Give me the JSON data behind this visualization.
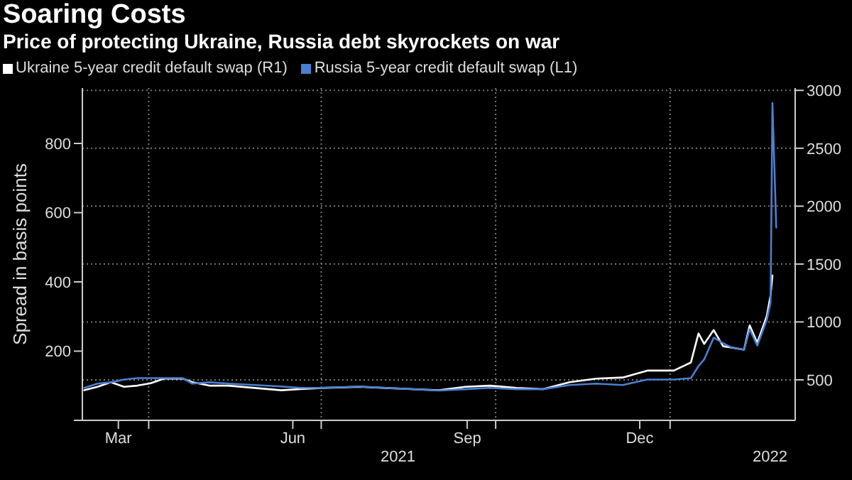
{
  "chart_data": {
    "type": "line",
    "title": "Soaring Costs",
    "subtitle": "Price of protecting Ukraine, Russia debt skyrockets on war",
    "ylabel": "Spread in basis points",
    "x": [
      "2021-02-26",
      "2021-03-05",
      "2021-03-12",
      "2021-03-19",
      "2021-03-26",
      "2021-04-02",
      "2021-04-09",
      "2021-04-19",
      "2021-04-24",
      "2021-05-03",
      "2021-05-13",
      "2021-05-27",
      "2021-06-10",
      "2021-06-20",
      "2021-07-01",
      "2021-07-21",
      "2021-08-04",
      "2021-08-18",
      "2021-09-01",
      "2021-09-15",
      "2021-09-28",
      "2021-10-12",
      "2021-10-26",
      "2021-11-09",
      "2021-11-23",
      "2021-12-07",
      "2021-12-20",
      "2022-01-03",
      "2022-01-12",
      "2022-01-16",
      "2022-01-19",
      "2022-01-24",
      "2022-01-29",
      "2022-02-02",
      "2022-02-09",
      "2022-02-12",
      "2022-02-16",
      "2022-02-21",
      "2022-02-23",
      "2022-02-24",
      "2022-02-26"
    ],
    "series": [
      {
        "name": "Ukraine 5-year credit default swap (R1)",
        "color": "#ffffff",
        "axis": "y2",
        "values": [
          410,
          440,
          480,
          440,
          450,
          470,
          510,
          510,
          480,
          450,
          450,
          430,
          410,
          420,
          430,
          440,
          430,
          420,
          410,
          440,
          450,
          430,
          420,
          480,
          510,
          520,
          580,
          580,
          650,
          900,
          810,
          930,
          790,
          780,
          760,
          970,
          820,
          1050,
          1230,
          1400,
          null
        ]
      },
      {
        "name": "Russia 5-year credit default swap (L1)",
        "color": "#4a7fd0",
        "values": [
          94,
          106,
          110,
          118,
          122,
          122,
          122,
          122,
          106,
          110,
          106,
          102,
          98,
          94,
          94,
          98,
          94,
          90,
          86,
          90,
          94,
          90,
          90,
          102,
          106,
          102,
          118,
          118,
          122,
          157,
          176,
          239,
          223,
          212,
          204,
          263,
          216,
          290,
          341,
          917,
          557
        ]
      }
    ],
    "xlim": [
      "2021-02-25",
      "2022-03-08"
    ],
    "xticks": [
      {
        "value": "2021-03-16",
        "label": "Mar"
      },
      {
        "value": "2021-04-01",
        "label": null
      },
      {
        "value": "2021-06-16",
        "label": "Jun"
      },
      {
        "value": "2021-07-01",
        "label": null
      },
      {
        "value": "2021-09-16",
        "label": "Sep"
      },
      {
        "value": "2021-10-01",
        "label": null
      },
      {
        "value": "2021-12-16",
        "label": "Dec"
      },
      {
        "value": "2022-01-01",
        "label": null
      }
    ],
    "ylim": [
      0,
      960
    ],
    "yticks": [
      {
        "value": 0,
        "label": null
      },
      200,
      400,
      600,
      800
    ],
    "y2lim": [
      150,
      3020
    ],
    "y2ticks": [
      500,
      1000,
      1500,
      2000,
      2500,
      3000
    ],
    "grid": true,
    "legend": "top left",
    "line_style": "solid",
    "annotations": [
      "2021",
      "2022"
    ]
  }
}
